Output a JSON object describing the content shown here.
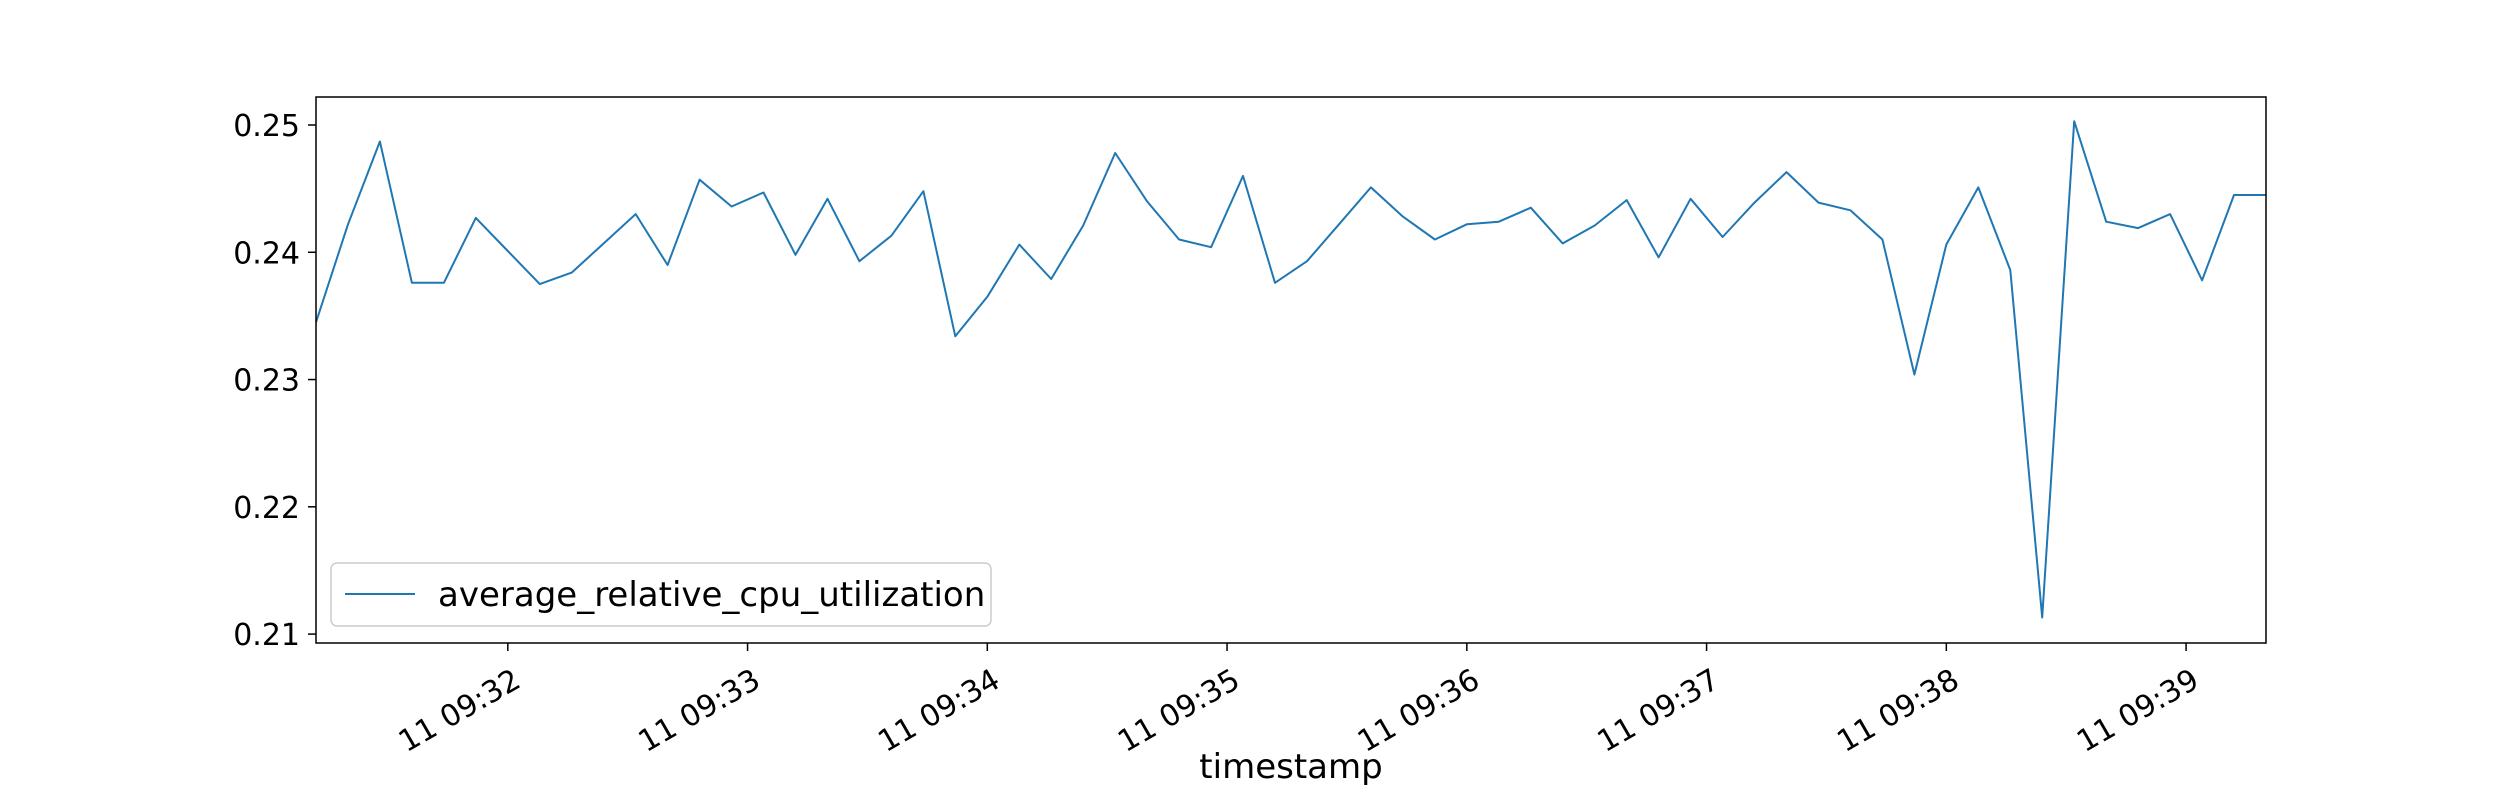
{
  "chart_data": {
    "type": "line",
    "title": "",
    "xlabel": "timestamp",
    "ylabel": "",
    "grid": false,
    "legend_placement": "lower-left",
    "xlim": [
      "11 09:31:12",
      "11 09:39:20"
    ],
    "ylim": [
      0.2093,
      0.2522
    ],
    "x_ticks": [
      {
        "label": "11 09:32",
        "time": "11 09:32:00"
      },
      {
        "label": "11 09:33",
        "time": "11 09:33:00"
      },
      {
        "label": "11 09:34",
        "time": "11 09:34:00"
      },
      {
        "label": "11 09:35",
        "time": "11 09:35:00"
      },
      {
        "label": "11 09:36",
        "time": "11 09:36:00"
      },
      {
        "label": "11 09:37",
        "time": "11 09:37:00"
      },
      {
        "label": "11 09:38",
        "time": "11 09:38:00"
      },
      {
        "label": "11 09:39",
        "time": "11 09:39:00"
      }
    ],
    "y_ticks": [
      {
        "label": "0.21",
        "value": 0.21
      },
      {
        "label": "0.22",
        "value": 0.22
      },
      {
        "label": "0.23",
        "value": 0.23
      },
      {
        "label": "0.24",
        "value": 0.24
      },
      {
        "label": "0.25",
        "value": 0.25
      }
    ],
    "series": [
      {
        "name": "average_relative_cpu_utilization",
        "color": "#1f77b4",
        "x": [
          "11 09:31:12",
          "11 09:31:20",
          "11 09:31:28",
          "11 09:31:36",
          "11 09:31:44",
          "11 09:31:52",
          "11 09:32:00",
          "11 09:32:08",
          "11 09:32:16",
          "11 09:32:24",
          "11 09:32:32",
          "11 09:32:40",
          "11 09:32:48",
          "11 09:32:56",
          "11 09:33:04",
          "11 09:33:12",
          "11 09:33:20",
          "11 09:33:28",
          "11 09:33:36",
          "11 09:33:44",
          "11 09:33:52",
          "11 09:34:00",
          "11 09:34:08",
          "11 09:34:16",
          "11 09:34:24",
          "11 09:34:32",
          "11 09:34:40",
          "11 09:34:48",
          "11 09:34:56",
          "11 09:35:04",
          "11 09:35:12",
          "11 09:35:20",
          "11 09:35:28",
          "11 09:35:36",
          "11 09:35:44",
          "11 09:35:52",
          "11 09:36:00",
          "11 09:36:08",
          "11 09:36:16",
          "11 09:36:24",
          "11 09:36:32",
          "11 09:36:40",
          "11 09:36:48",
          "11 09:36:56",
          "11 09:37:04",
          "11 09:37:12",
          "11 09:37:20",
          "11 09:37:28",
          "11 09:37:36",
          "11 09:37:44",
          "11 09:37:52",
          "11 09:38:00",
          "11 09:38:08",
          "11 09:38:16",
          "11 09:38:24",
          "11 09:38:32",
          "11 09:38:40",
          "11 09:38:48",
          "11 09:38:56",
          "11 09:39:04",
          "11 09:39:12",
          "11 09:39:20"
        ],
        "values": [
          0.2345,
          0.2422,
          0.2487,
          0.2376,
          0.2376,
          0.2427,
          0.2401,
          0.2375,
          0.2384,
          0.2407,
          0.243,
          0.239,
          0.2457,
          0.2436,
          0.2447,
          0.2398,
          0.2442,
          0.2393,
          0.2413,
          0.2448,
          0.2334,
          0.2365,
          0.2406,
          0.2379,
          0.2421,
          0.2478,
          0.244,
          0.241,
          0.2404,
          0.246,
          0.2376,
          0.2393,
          0.2422,
          0.2451,
          0.2428,
          0.241,
          0.2422,
          0.2424,
          0.2435,
          0.2407,
          0.2421,
          0.2441,
          0.2396,
          0.2442,
          0.2412,
          0.2439,
          0.2463,
          0.2439,
          0.2433,
          0.241,
          0.2304,
          0.2406,
          0.2451,
          0.2386,
          0.2113,
          0.2503,
          0.2424,
          0.2419,
          0.243,
          0.2378,
          0.2445,
          0.2445
        ]
      }
    ]
  }
}
